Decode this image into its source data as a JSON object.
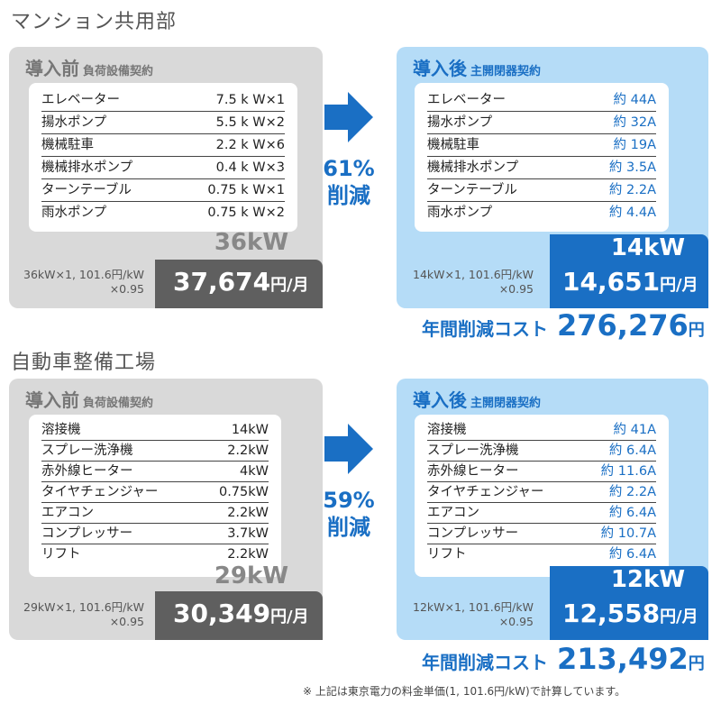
{
  "sections": [
    {
      "title": "マンション共用部",
      "before": {
        "head_main": "導入前",
        "head_sub": "負荷設備契約",
        "rows": [
          {
            "name": "エレベーター",
            "value": "7.5 k W×1"
          },
          {
            "name": "揚水ポンプ",
            "value": "5.5 k W×2"
          },
          {
            "name": "機械駐車",
            "value": "2.2 k W×6"
          },
          {
            "name": "機械排水ポンプ",
            "value": "0.4 k W×3"
          },
          {
            "name": "ターンテーブル",
            "value": "0.75 k W×1"
          },
          {
            "name": "雨水ポンプ",
            "value": "0.75 k W×2"
          }
        ],
        "kw": "36kW",
        "calc_line1": "36kW×1, 101.6円/kW",
        "calc_line2": "×0.95",
        "price": "37,674",
        "price_unit": "円/月"
      },
      "reduction_pct": "61%",
      "reduction_word": "削減",
      "after": {
        "head_main": "導入後",
        "head_sub": "主開閉器契約",
        "rows": [
          {
            "name": "エレベーター",
            "value": "約 44A"
          },
          {
            "name": "揚水ポンプ",
            "value": "約 32A"
          },
          {
            "name": "機械駐車",
            "value": "約 19A"
          },
          {
            "name": "機械排水ポンプ",
            "value": "約 3.5A"
          },
          {
            "name": "ターンテーブル",
            "value": "約 2.2A"
          },
          {
            "name": "雨水ポンプ",
            "value": "約 4.4A"
          }
        ],
        "kw": "14kW",
        "calc_line1": "14kW×1, 101.6円/kW",
        "calc_line2": "×0.95",
        "price": "14,651",
        "price_unit": "円/月"
      },
      "saving_label": "年間削減コスト",
      "saving_value": "276,276",
      "saving_unit": "円"
    },
    {
      "title": "自動車整備工場",
      "before": {
        "head_main": "導入前",
        "head_sub": "負荷設備契約",
        "rows": [
          {
            "name": "溶接機",
            "value": "14kW"
          },
          {
            "name": "スプレー洗浄機",
            "value": "2.2kW"
          },
          {
            "name": "赤外線ヒーター",
            "value": "4kW"
          },
          {
            "name": "タイヤチェンジャー",
            "value": "0.75kW"
          },
          {
            "name": "エアコン",
            "value": "2.2kW"
          },
          {
            "name": "コンプレッサー",
            "value": "3.7kW"
          },
          {
            "name": "リフト",
            "value": "2.2kW"
          }
        ],
        "kw": "29kW",
        "calc_line1": "29kW×1, 101.6円/kW",
        "calc_line2": "×0.95",
        "price": "30,349",
        "price_unit": "円/月"
      },
      "reduction_pct": "59%",
      "reduction_word": "削減",
      "after": {
        "head_main": "導入後",
        "head_sub": "主開閉器契約",
        "rows": [
          {
            "name": "溶接機",
            "value": "約 41A"
          },
          {
            "name": "スプレー洗浄機",
            "value": "約 6.4A"
          },
          {
            "name": "赤外線ヒーター",
            "value": "約 11.6A"
          },
          {
            "name": "タイヤチェンジャー",
            "value": "約 2.2A"
          },
          {
            "name": "エアコン",
            "value": "約 6.4A"
          },
          {
            "name": "コンプレッサー",
            "value": "約 10.7A"
          },
          {
            "name": "リフト",
            "value": "約 6.4A"
          }
        ],
        "kw": "12kW",
        "calc_line1": "12kW×1, 101.6円/kW",
        "calc_line2": "×0.95",
        "price": "12,558",
        "price_unit": "円/月"
      },
      "saving_label": "年間削減コスト",
      "saving_value": "213,492",
      "saving_unit": "円"
    }
  ],
  "footnote": "※ 上記は東京電力の料金単価(1, 101.6円/kW)で計算しています。",
  "colors": {
    "accent_blue": "#1a6fc4",
    "light_blue": "#b5dcf7",
    "gray_panel": "#d9d9d9",
    "dark_gray": "#5f5f5f"
  }
}
